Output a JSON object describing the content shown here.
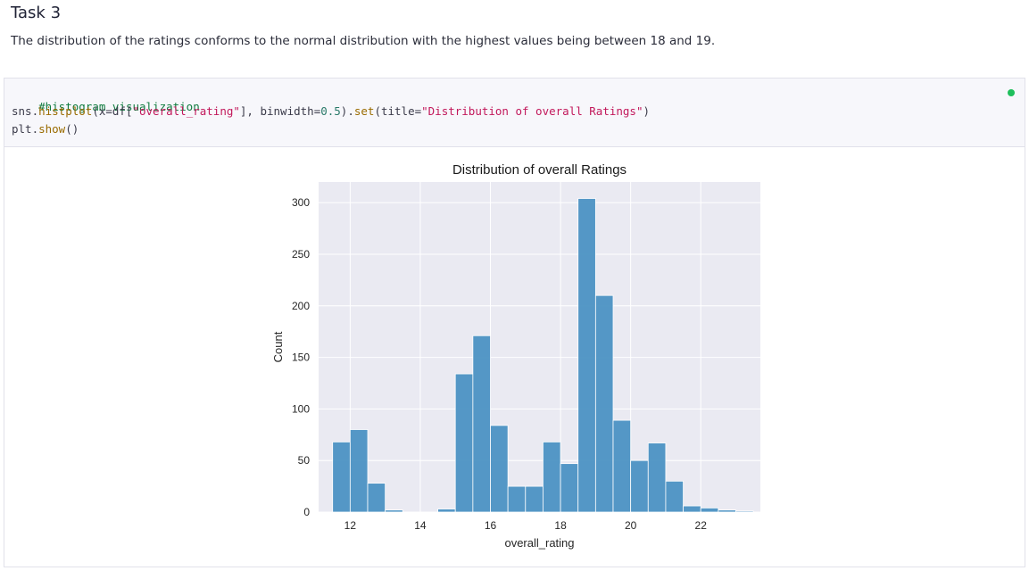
{
  "heading": "Task 3",
  "description": "The distribution of the ratings conforms to the normal distribution with the highest values being between 18 and 19.",
  "code": {
    "line1": "#histogram visualization",
    "line2": {
      "p1": "sns.",
      "f1": "histplot",
      "p2": "(x=df[",
      "s1": "\"overall_rating\"",
      "p3": "], binwidth=",
      "n1": "0.5",
      "p4": ").",
      "f2": "set",
      "p5": "(title=",
      "s2": "\"Distribution of overall Ratings\"",
      "p6": ")"
    },
    "line3": {
      "p1": "plt.",
      "f1": "show",
      "p2": "()"
    }
  },
  "status_color": "#1fbf5c",
  "chart_data": {
    "type": "bar",
    "title": "Distribution of overall Ratings",
    "xlabel": "overall_rating",
    "ylabel": "Count",
    "bar_color": "#4c92c3",
    "background": "#eaeaf2",
    "grid": true,
    "binwidth": 0.5,
    "xlim": [
      11.1,
      23.7
    ],
    "ylim": [
      0,
      320
    ],
    "xticks": [
      12,
      14,
      16,
      18,
      20,
      22
    ],
    "yticks": [
      0,
      50,
      100,
      150,
      200,
      250,
      300
    ],
    "bins": [
      {
        "start": 11.5,
        "count": 68
      },
      {
        "start": 12.0,
        "count": 80
      },
      {
        "start": 12.5,
        "count": 28
      },
      {
        "start": 13.0,
        "count": 2
      },
      {
        "start": 13.5,
        "count": 0
      },
      {
        "start": 14.0,
        "count": 0
      },
      {
        "start": 14.5,
        "count": 3
      },
      {
        "start": 15.0,
        "count": 134
      },
      {
        "start": 15.5,
        "count": 171
      },
      {
        "start": 16.0,
        "count": 84
      },
      {
        "start": 16.5,
        "count": 25
      },
      {
        "start": 17.0,
        "count": 25
      },
      {
        "start": 17.5,
        "count": 68
      },
      {
        "start": 18.0,
        "count": 47
      },
      {
        "start": 18.5,
        "count": 304
      },
      {
        "start": 19.0,
        "count": 210
      },
      {
        "start": 19.5,
        "count": 89
      },
      {
        "start": 20.0,
        "count": 50
      },
      {
        "start": 20.5,
        "count": 67
      },
      {
        "start": 21.0,
        "count": 30
      },
      {
        "start": 21.5,
        "count": 6
      },
      {
        "start": 22.0,
        "count": 4
      },
      {
        "start": 22.5,
        "count": 2
      },
      {
        "start": 23.0,
        "count": 1
      }
    ]
  }
}
